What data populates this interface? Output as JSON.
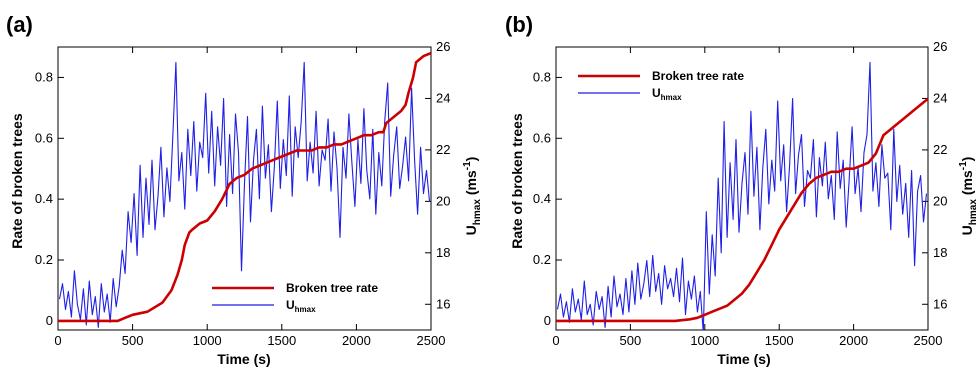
{
  "chart_data": [
    {
      "type": "line",
      "panel_label": "(a)",
      "xlabel": "Time (s)",
      "ylabel": "Rate of broken trees",
      "y2label_main": "U",
      "y2label_sub": "hmax",
      "y2label_unit_open": " (ms",
      "y2label_unit_exp": "-1",
      "y2label_unit_close": ")",
      "xlim": [
        0,
        2500
      ],
      "ylim": [
        -0.03,
        0.9
      ],
      "y2lim": [
        15,
        26
      ],
      "xticks": [
        "0",
        "500",
        "1000",
        "1500",
        "2000",
        "2500"
      ],
      "yticks": [
        "0",
        "0.2",
        "0.4",
        "0.6",
        "0.8"
      ],
      "y2ticks": [
        "16",
        "18",
        "20",
        "22",
        "24",
        "26"
      ],
      "legend": {
        "placement": "bottom-right",
        "entries": [
          {
            "label": "Broken tree rate",
            "color": "#cc0000"
          },
          {
            "label_main": "U",
            "label_sub": "hmax",
            "color": "#1f1fe6"
          }
        ]
      },
      "series": [
        {
          "name": "Broken tree rate",
          "axis": "left",
          "color": "#cc0000",
          "x": [
            0,
            300,
            400,
            450,
            500,
            600,
            700,
            760,
            800,
            830,
            850,
            880,
            900,
            950,
            1000,
            1050,
            1100,
            1150,
            1200,
            1250,
            1300,
            1350,
            1400,
            1450,
            1500,
            1550,
            1600,
            1650,
            1700,
            1750,
            1800,
            1850,
            1900,
            1950,
            2000,
            2050,
            2100,
            2150,
            2180,
            2200,
            2250,
            2300,
            2330,
            2350,
            2380,
            2400,
            2450,
            2500
          ],
          "y": [
            0.0,
            0.0,
            0.0,
            0.01,
            0.02,
            0.03,
            0.06,
            0.1,
            0.15,
            0.2,
            0.25,
            0.29,
            0.3,
            0.32,
            0.33,
            0.36,
            0.4,
            0.45,
            0.47,
            0.48,
            0.5,
            0.51,
            0.52,
            0.53,
            0.54,
            0.55,
            0.56,
            0.56,
            0.56,
            0.57,
            0.57,
            0.58,
            0.58,
            0.59,
            0.6,
            0.61,
            0.61,
            0.62,
            0.62,
            0.65,
            0.67,
            0.69,
            0.71,
            0.75,
            0.8,
            0.85,
            0.87,
            0.88
          ]
        },
        {
          "name": "U_hmax",
          "axis": "right",
          "color": "#1f1fe6",
          "x": [
            10,
            30,
            50,
            70,
            90,
            110,
            130,
            150,
            170,
            190,
            210,
            230,
            250,
            270,
            290,
            310,
            330,
            350,
            370,
            390,
            410,
            430,
            450,
            470,
            490,
            510,
            530,
            550,
            570,
            590,
            610,
            630,
            650,
            670,
            690,
            710,
            730,
            750,
            770,
            790,
            810,
            830,
            850,
            870,
            890,
            910,
            930,
            950,
            970,
            990,
            1010,
            1030,
            1050,
            1070,
            1090,
            1110,
            1130,
            1150,
            1170,
            1190,
            1210,
            1230,
            1250,
            1270,
            1290,
            1310,
            1330,
            1350,
            1370,
            1390,
            1410,
            1430,
            1450,
            1470,
            1490,
            1510,
            1530,
            1550,
            1570,
            1590,
            1610,
            1630,
            1650,
            1670,
            1690,
            1710,
            1730,
            1750,
            1770,
            1790,
            1810,
            1830,
            1850,
            1870,
            1890,
            1910,
            1930,
            1950,
            1970,
            1990,
            2010,
            2030,
            2050,
            2070,
            2090,
            2110,
            2130,
            2150,
            2170,
            2190,
            2210,
            2230,
            2250,
            2270,
            2290,
            2310,
            2330,
            2350,
            2370,
            2390,
            2410,
            2430,
            2450,
            2470,
            2490
          ],
          "y": [
            16.2,
            16.8,
            15.8,
            16.5,
            15.5,
            17.3,
            16.0,
            15.4,
            16.6,
            15.2,
            16.9,
            15.6,
            16.3,
            15.1,
            16.8,
            15.7,
            16.4,
            15.3,
            17.0,
            15.9,
            16.7,
            18.1,
            17.2,
            19.6,
            18.4,
            20.3,
            17.9,
            21.4,
            18.6,
            20.9,
            19.1,
            21.6,
            18.9,
            20.2,
            22.1,
            19.4,
            21.3,
            20.0,
            22.6,
            25.4,
            20.8,
            21.9,
            19.7,
            22.8,
            21.0,
            23.1,
            20.4,
            22.3,
            21.7,
            24.2,
            21.1,
            23.5,
            20.6,
            22.9,
            21.4,
            24.0,
            19.8,
            22.6,
            20.3,
            23.4,
            21.9,
            17.3,
            20.7,
            23.3,
            19.2,
            21.6,
            22.8,
            20.1,
            23.7,
            20.9,
            22.2,
            19.6,
            21.3,
            23.9,
            20.5,
            22.4,
            21.0,
            24.1,
            20.2,
            22.9,
            21.7,
            23.1,
            25.4,
            20.8,
            22.3,
            21.1,
            23.5,
            20.6,
            22.0,
            21.6,
            23.2,
            20.4,
            22.7,
            21.3,
            18.6,
            22.1,
            20.9,
            23.4,
            21.5,
            19.8,
            22.4,
            20.7,
            23.6,
            21.2,
            20.1,
            22.8,
            19.5,
            21.9,
            20.6,
            23.1,
            24.6,
            20.2,
            21.8,
            22.9,
            20.5,
            21.4,
            22.5,
            20.8,
            24.4,
            21.6,
            19.5,
            22.1,
            20.3,
            21.2,
            20.0
          ]
        }
      ]
    },
    {
      "type": "line",
      "panel_label": "(b)",
      "xlabel": "Time (s)",
      "ylabel": "Rate of broken trees",
      "y2label_main": "U",
      "y2label_sub": "hmax",
      "y2label_unit_open": " (ms",
      "y2label_unit_exp": "-1",
      "y2label_unit_close": ")",
      "xlim": [
        0,
        2500
      ],
      "ylim": [
        -0.03,
        0.9
      ],
      "y2lim": [
        15,
        26
      ],
      "xticks": [
        "0",
        "500",
        "1000",
        "1500",
        "2000",
        "2500"
      ],
      "yticks": [
        "0",
        "0.2",
        "0.4",
        "0.6",
        "0.8"
      ],
      "y2ticks": [
        "16",
        "18",
        "20",
        "22",
        "24",
        "26"
      ],
      "legend": {
        "placement": "top-left",
        "entries": [
          {
            "label": "Broken tree rate",
            "color": "#cc0000"
          },
          {
            "label_main": "U",
            "label_sub": "hmax",
            "color": "#1f1fe6"
          }
        ]
      },
      "series": [
        {
          "name": "Broken tree rate",
          "axis": "left",
          "color": "#cc0000",
          "x": [
            0,
            600,
            800,
            900,
            950,
            1000,
            1050,
            1100,
            1150,
            1200,
            1250,
            1300,
            1350,
            1400,
            1450,
            1500,
            1550,
            1600,
            1650,
            1700,
            1750,
            1800,
            1850,
            1900,
            1950,
            2000,
            2050,
            2100,
            2150,
            2200,
            2250,
            2300,
            2350,
            2400,
            2450,
            2500
          ],
          "y": [
            0.0,
            0.0,
            0.0,
            0.005,
            0.01,
            0.02,
            0.03,
            0.04,
            0.05,
            0.07,
            0.09,
            0.12,
            0.16,
            0.2,
            0.25,
            0.3,
            0.34,
            0.38,
            0.42,
            0.45,
            0.47,
            0.48,
            0.49,
            0.49,
            0.5,
            0.5,
            0.51,
            0.52,
            0.55,
            0.61,
            0.63,
            0.65,
            0.67,
            0.69,
            0.71,
            0.73
          ]
        },
        {
          "name": "U_hmax",
          "axis": "right",
          "color": "#1f1fe6",
          "x": [
            10,
            30,
            50,
            70,
            90,
            110,
            130,
            150,
            170,
            190,
            210,
            230,
            250,
            270,
            290,
            310,
            330,
            350,
            370,
            390,
            410,
            430,
            450,
            470,
            490,
            510,
            530,
            550,
            570,
            590,
            610,
            630,
            650,
            670,
            690,
            710,
            730,
            750,
            770,
            790,
            810,
            830,
            850,
            870,
            890,
            910,
            930,
            950,
            970,
            990,
            1010,
            1030,
            1050,
            1070,
            1090,
            1110,
            1130,
            1150,
            1170,
            1190,
            1210,
            1230,
            1250,
            1270,
            1290,
            1310,
            1330,
            1350,
            1370,
            1390,
            1410,
            1430,
            1450,
            1470,
            1490,
            1510,
            1530,
            1550,
            1570,
            1590,
            1610,
            1630,
            1650,
            1670,
            1690,
            1710,
            1730,
            1750,
            1770,
            1790,
            1810,
            1830,
            1850,
            1870,
            1890,
            1910,
            1930,
            1950,
            1970,
            1990,
            2010,
            2030,
            2050,
            2070,
            2090,
            2110,
            2130,
            2150,
            2170,
            2190,
            2210,
            2230,
            2250,
            2270,
            2290,
            2310,
            2330,
            2350,
            2370,
            2390,
            2410,
            2430,
            2450,
            2470,
            2490
          ],
          "y": [
            15.8,
            16.4,
            15.5,
            16.1,
            15.3,
            16.6,
            15.7,
            16.2,
            15.4,
            16.9,
            15.6,
            16.0,
            15.2,
            16.5,
            15.8,
            16.3,
            15.1,
            16.7,
            15.5,
            17.1,
            15.9,
            16.4,
            15.6,
            17.0,
            15.7,
            17.3,
            16.0,
            17.6,
            16.2,
            16.8,
            17.7,
            16.3,
            17.9,
            16.5,
            17.2,
            16.0,
            17.5,
            16.6,
            17.0,
            16.3,
            17.4,
            16.1,
            17.8,
            15.6,
            16.9,
            16.2,
            17.1,
            15.7,
            16.5,
            14.9,
            19.6,
            16.4,
            18.7,
            17.1,
            20.9,
            18.0,
            23.1,
            18.6,
            21.5,
            19.3,
            22.4,
            18.8,
            20.7,
            21.9,
            19.5,
            23.5,
            20.2,
            22.1,
            18.9,
            21.3,
            22.8,
            19.9,
            21.6,
            20.4,
            23.9,
            20.8,
            22.2,
            19.6,
            21.4,
            24.0,
            20.3,
            21.8,
            22.6,
            19.8,
            21.2,
            20.9,
            22.4,
            19.4,
            21.7,
            20.6,
            22.3,
            20.1,
            21.0,
            19.3,
            22.7,
            20.5,
            21.6,
            19.0,
            20.8,
            22.9,
            20.3,
            21.3,
            19.6,
            21.9,
            22.6,
            25.4,
            20.4,
            21.5,
            19.8,
            22.2,
            20.9,
            21.1,
            18.9,
            22.8,
            20.0,
            21.4,
            19.5,
            20.7,
            18.6,
            21.2,
            17.5,
            20.4,
            21.0,
            19.2,
            20.3
          ]
        }
      ]
    }
  ]
}
